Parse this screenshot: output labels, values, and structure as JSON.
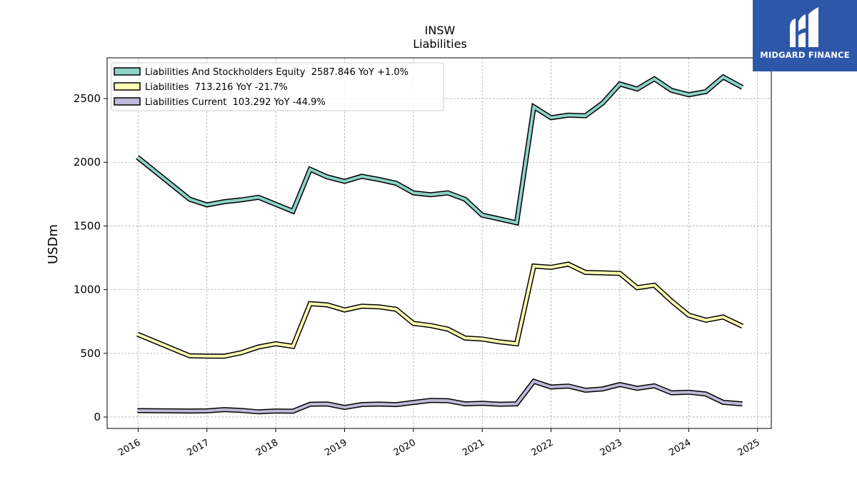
{
  "chart_data": {
    "type": "line",
    "title": "INSW",
    "subtitle": "Liabilities",
    "xlabel": "",
    "ylabel": "USDm",
    "xlim": [
      2015.55,
      2025.2
    ],
    "ylim": [
      -90,
      2820
    ],
    "x_ticks": [
      2016,
      2017,
      2018,
      2019,
      2020,
      2021,
      2022,
      2023,
      2024,
      2025
    ],
    "x_tick_labels": [
      "2016",
      "2017",
      "2018",
      "2019",
      "2020",
      "2021",
      "2022",
      "2023",
      "2024",
      "2025"
    ],
    "y_ticks": [
      0,
      500,
      1000,
      1500,
      2000,
      2500
    ],
    "y_tick_labels": [
      "0",
      "500",
      "1000",
      "1500",
      "2000",
      "2500"
    ],
    "grid": true,
    "legend_position": "top-left",
    "series": [
      {
        "name": "Liabilities And Stockholders Equity",
        "legend_label": "Liabilities And Stockholders Equity  2587.846 YoY +1.0%",
        "color": "#8dd3c7",
        "x": [
          2015.99,
          2016.75,
          2017.0,
          2017.25,
          2017.5,
          2017.75,
          2018.0,
          2018.25,
          2018.5,
          2018.75,
          2019.0,
          2019.25,
          2019.5,
          2019.75,
          2020.0,
          2020.25,
          2020.5,
          2020.75,
          2021.0,
          2021.25,
          2021.5,
          2021.75,
          2022.0,
          2022.25,
          2022.5,
          2022.75,
          2023.0,
          2023.25,
          2023.5,
          2023.75,
          2024.0,
          2024.25,
          2024.5,
          2024.78
        ],
        "y": [
          2040,
          1710,
          1665,
          1690,
          1705,
          1725,
          1670,
          1615,
          1945,
          1885,
          1850,
          1890,
          1865,
          1835,
          1760,
          1745,
          1760,
          1710,
          1585,
          1555,
          1525,
          2435,
          2350,
          2370,
          2365,
          2465,
          2615,
          2575,
          2655,
          2565,
          2530,
          2555,
          2670,
          2588
        ]
      },
      {
        "name": "Liabilities",
        "legend_label": "Liabilities  713.216 YoY -21.7%",
        "color": "#ffffb3",
        "x": [
          2015.99,
          2016.75,
          2017.0,
          2017.25,
          2017.5,
          2017.75,
          2018.0,
          2018.25,
          2018.5,
          2018.75,
          2019.0,
          2019.25,
          2019.5,
          2019.75,
          2020.0,
          2020.25,
          2020.5,
          2020.75,
          2021.0,
          2021.25,
          2021.5,
          2021.75,
          2022.0,
          2022.25,
          2022.5,
          2022.75,
          2023.0,
          2023.25,
          2023.5,
          2023.75,
          2024.0,
          2024.25,
          2024.5,
          2024.78
        ],
        "y": [
          650,
          480,
          478,
          477,
          505,
          550,
          575,
          555,
          890,
          880,
          840,
          870,
          865,
          845,
          735,
          718,
          690,
          620,
          612,
          590,
          575,
          1185,
          1175,
          1200,
          1135,
          1132,
          1127,
          1015,
          1035,
          910,
          800,
          760,
          785,
          713
        ]
      },
      {
        "name": "Liabilities Current",
        "legend_label": "Liabilities Current  103.292 YoY -44.9%",
        "color": "#bebada",
        "x": [
          2015.99,
          2016.75,
          2017.0,
          2017.25,
          2017.5,
          2017.75,
          2018.0,
          2018.25,
          2018.5,
          2018.75,
          2019.0,
          2019.25,
          2019.5,
          2019.75,
          2020.0,
          2020.25,
          2020.5,
          2020.75,
          2021.0,
          2021.25,
          2021.5,
          2021.75,
          2022.0,
          2022.25,
          2022.5,
          2022.75,
          2023.0,
          2023.25,
          2023.5,
          2023.75,
          2024.0,
          2024.25,
          2024.5,
          2024.78
        ],
        "y": [
          50,
          47,
          48,
          58,
          52,
          40,
          47,
          45,
          100,
          102,
          75,
          98,
          101,
          97,
          114,
          130,
          128,
          103,
          108,
          100,
          103,
          280,
          235,
          243,
          210,
          220,
          255,
          225,
          245,
          190,
          195,
          180,
          115,
          103
        ]
      }
    ]
  },
  "logo": {
    "text": "MIDGARD FINANCE"
  }
}
